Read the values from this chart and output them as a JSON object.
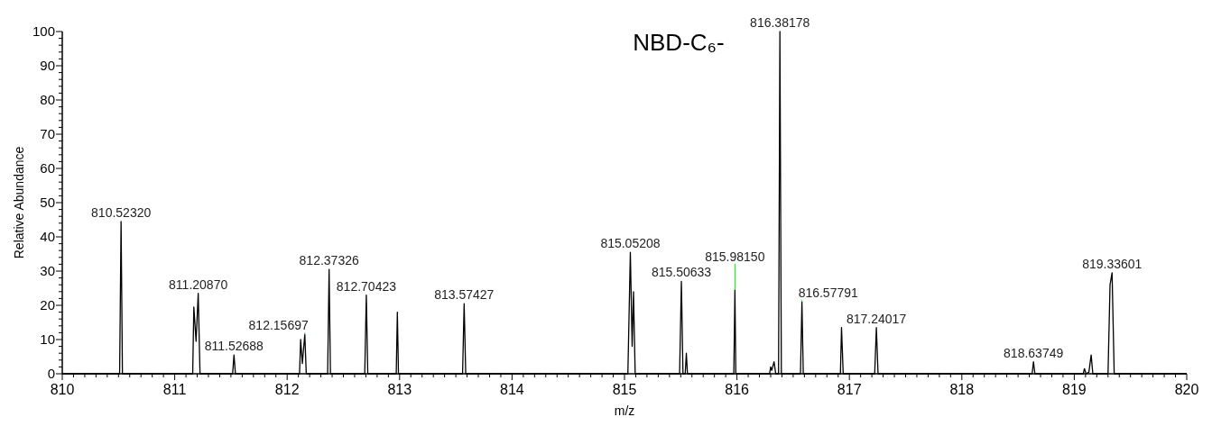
{
  "chart_data": {
    "type": "line",
    "title": "NBD-C₆-",
    "xlabel": "m/z",
    "ylabel": "Relative Abundance",
    "xlim": [
      810,
      820
    ],
    "xticks": [
      810,
      811,
      812,
      813,
      814,
      815,
      816,
      817,
      818,
      819,
      820
    ],
    "ylim": [
      0,
      100
    ],
    "yticks": [
      0,
      10,
      20,
      30,
      40,
      50,
      60,
      70,
      80,
      90,
      100
    ],
    "grid": false,
    "marker": "none",
    "line_style": "solid",
    "series": [
      {
        "color": "#000000",
        "x": [
          810,
          810.51,
          810.523,
          810.535,
          811.16,
          811.17,
          811.19,
          811.209,
          811.225,
          811.515,
          811.527,
          811.54,
          812.11,
          812.12,
          812.135,
          812.157,
          812.17,
          812.36,
          812.373,
          812.385,
          812.69,
          812.704,
          812.717,
          812.97,
          812.98,
          812.99,
          813.56,
          813.574,
          813.588,
          815.03,
          815.052,
          815.068,
          815.08,
          815.095,
          815.49,
          815.506,
          815.52,
          815.54,
          815.55,
          815.56,
          815.972,
          815.982,
          815.99,
          816.29,
          816.3,
          816.31,
          816.33,
          816.345,
          816.37,
          816.382,
          816.395,
          816.565,
          816.578,
          816.59,
          816.92,
          816.93,
          816.945,
          817.225,
          817.24,
          817.255,
          818.625,
          818.637,
          818.65,
          819.08,
          819.09,
          819.105,
          819.13,
          819.15,
          819.165,
          819.3,
          819.318,
          819.336,
          819.355,
          820
        ],
        "values": [
          0,
          0,
          44.5,
          0,
          0,
          19.5,
          9.5,
          23.5,
          0,
          0,
          5.5,
          0,
          0,
          10,
          3,
          11.5,
          0,
          0,
          30.5,
          0,
          0,
          23,
          0,
          0,
          18,
          0,
          0,
          20.5,
          0,
          0,
          35.5,
          8,
          24,
          0,
          0,
          27,
          0,
          0,
          6,
          0,
          0,
          24.5,
          0,
          0,
          2,
          1,
          3.5,
          0,
          0,
          100,
          0,
          0,
          21,
          0,
          0,
          13.5,
          0,
          0,
          13.5,
          0,
          0,
          3.5,
          0,
          0,
          1.5,
          0,
          0.5,
          5.5,
          0,
          0,
          26,
          29.5,
          0,
          0
        ]
      }
    ],
    "annotations": [
      {
        "text": "810.52320",
        "x": 810.523,
        "y": 44.5
      },
      {
        "text": "811.20870",
        "x": 811.209,
        "y": 23.5
      },
      {
        "text": "811.52688",
        "x": 811.527,
        "y": 5.5
      },
      {
        "text": "812.15697",
        "x": 812.157,
        "y": 11.5
      },
      {
        "text": "812.37326",
        "x": 812.373,
        "y": 30.5
      },
      {
        "text": "812.70423",
        "x": 812.704,
        "y": 23
      },
      {
        "text": "813.57427",
        "x": 813.574,
        "y": 20.5
      },
      {
        "text": "815.05208",
        "x": 815.052,
        "y": 35.5
      },
      {
        "text": "815.50633",
        "x": 815.506,
        "y": 27
      },
      {
        "text": "815.98150",
        "x": 815.982,
        "y": 24.5
      },
      {
        "text": "816.38178",
        "x": 816.382,
        "y": 100
      },
      {
        "text": "816.57791",
        "x": 816.578,
        "y": 21
      },
      {
        "text": "817.24017",
        "x": 817.24,
        "y": 13.5
      },
      {
        "text": "818.63749",
        "x": 818.637,
        "y": 3.5
      },
      {
        "text": "819.33601",
        "x": 819.336,
        "y": 29.5
      }
    ]
  }
}
